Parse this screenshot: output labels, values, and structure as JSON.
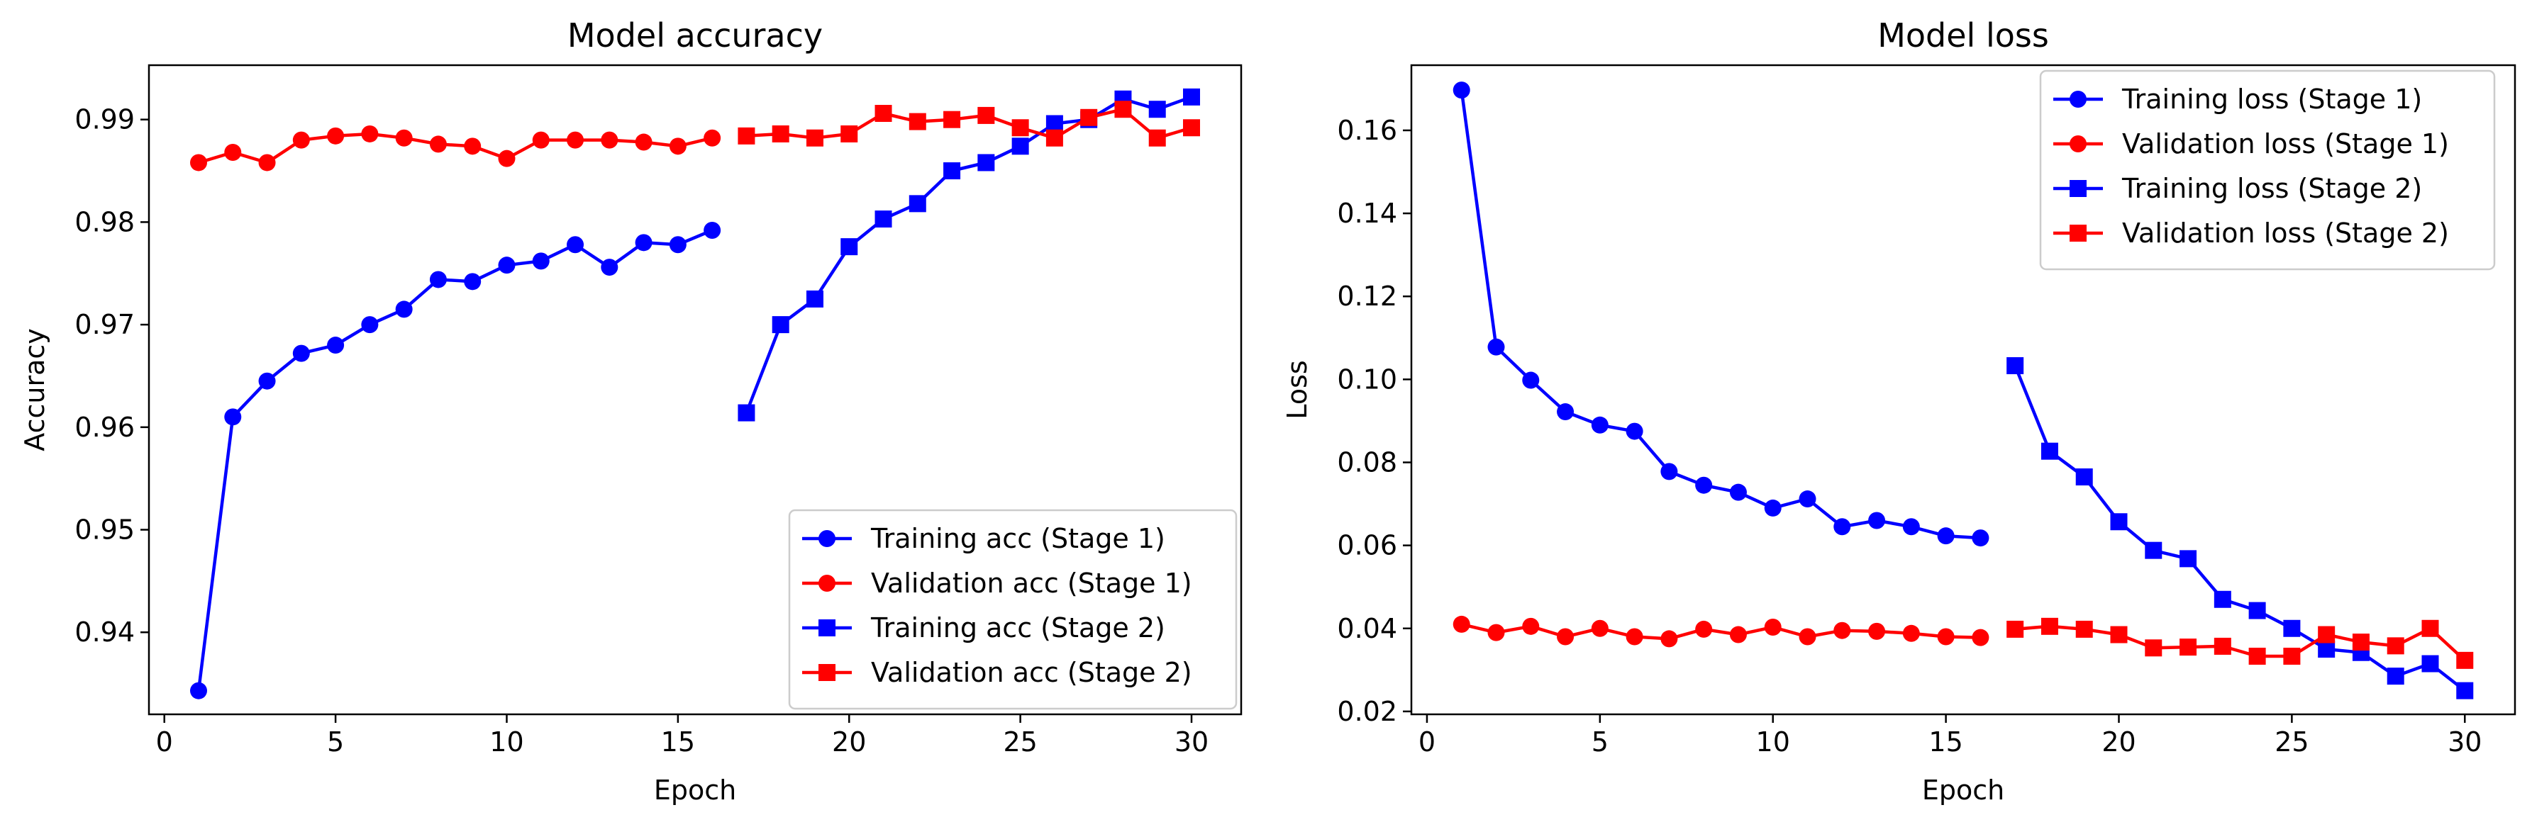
{
  "chart_data": [
    {
      "type": "line",
      "title": "Model accuracy",
      "xlabel": "Epoch",
      "ylabel": "Accuracy",
      "xlim": [
        -0.45,
        31.45
      ],
      "ylim": [
        0.932,
        0.9953
      ],
      "xticks": [
        0,
        5,
        10,
        15,
        20,
        25,
        30
      ],
      "yticks": [
        0.94,
        0.95,
        0.96,
        0.97,
        0.98,
        0.99
      ],
      "xtick_labels": [
        "0",
        "5",
        "10",
        "15",
        "20",
        "25",
        "30"
      ],
      "ytick_labels": [
        "0.94",
        "0.95",
        "0.96",
        "0.97",
        "0.98",
        "0.99"
      ],
      "legend_position": "lower-right",
      "grid": false,
      "series": [
        {
          "name": "Training acc (Stage 1)",
          "color": "#0000ff",
          "marker": "circle",
          "x": [
            1,
            2,
            3,
            4,
            5,
            6,
            7,
            8,
            9,
            10,
            11,
            12,
            13,
            14,
            15,
            16
          ],
          "y": [
            0.9343,
            0.961,
            0.9645,
            0.9672,
            0.968,
            0.97,
            0.9715,
            0.9744,
            0.9742,
            0.9758,
            0.9762,
            0.9778,
            0.9756,
            0.978,
            0.9778,
            0.9792
          ]
        },
        {
          "name": "Validation acc (Stage 1)",
          "color": "#ff0000",
          "marker": "circle",
          "x": [
            1,
            2,
            3,
            4,
            5,
            6,
            7,
            8,
            9,
            10,
            11,
            12,
            13,
            14,
            15,
            16
          ],
          "y": [
            0.9858,
            0.9868,
            0.9858,
            0.988,
            0.9884,
            0.9886,
            0.9882,
            0.9876,
            0.9874,
            0.9862,
            0.988,
            0.988,
            0.988,
            0.9878,
            0.9874,
            0.9882
          ]
        },
        {
          "name": "Training acc (Stage 2)",
          "color": "#0000ff",
          "marker": "square",
          "x": [
            17,
            18,
            19,
            20,
            21,
            22,
            23,
            24,
            25,
            26,
            27,
            28,
            29,
            30
          ],
          "y": [
            0.9614,
            0.97,
            0.9725,
            0.9776,
            0.9803,
            0.9818,
            0.985,
            0.9858,
            0.9874,
            0.9896,
            0.99,
            0.992,
            0.991,
            0.9922
          ]
        },
        {
          "name": "Validation acc (Stage 2)",
          "color": "#ff0000",
          "marker": "square",
          "x": [
            17,
            18,
            19,
            20,
            21,
            22,
            23,
            24,
            25,
            26,
            27,
            28,
            29,
            30
          ],
          "y": [
            0.9884,
            0.9886,
            0.9882,
            0.9886,
            0.9906,
            0.9898,
            0.99,
            0.9904,
            0.9892,
            0.9882,
            0.9902,
            0.991,
            0.9882,
            0.9892
          ]
        }
      ]
    },
    {
      "type": "line",
      "title": "Model loss",
      "xlabel": "Epoch",
      "ylabel": "Loss",
      "xlim": [
        -0.45,
        31.45
      ],
      "ylim": [
        0.0193,
        0.1757
      ],
      "xticks": [
        0,
        5,
        10,
        15,
        20,
        25,
        30
      ],
      "yticks": [
        0.02,
        0.04,
        0.06,
        0.08,
        0.1,
        0.12,
        0.14,
        0.16
      ],
      "xtick_labels": [
        "0",
        "5",
        "10",
        "15",
        "20",
        "25",
        "30"
      ],
      "ytick_labels": [
        "0.02",
        "0.04",
        "0.06",
        "0.08",
        "0.10",
        "0.12",
        "0.14",
        "0.16"
      ],
      "legend_position": "upper-right",
      "grid": false,
      "series": [
        {
          "name": "Training loss (Stage 1)",
          "color": "#0000ff",
          "marker": "circle",
          "x": [
            1,
            2,
            3,
            4,
            5,
            6,
            7,
            8,
            9,
            10,
            11,
            12,
            13,
            14,
            15,
            16
          ],
          "y": [
            0.1697,
            0.1078,
            0.0998,
            0.0922,
            0.089,
            0.0875,
            0.0778,
            0.0745,
            0.0728,
            0.069,
            0.0712,
            0.0645,
            0.066,
            0.0645,
            0.0623,
            0.0618
          ]
        },
        {
          "name": "Validation loss (Stage 1)",
          "color": "#ff0000",
          "marker": "circle",
          "x": [
            1,
            2,
            3,
            4,
            5,
            6,
            7,
            8,
            9,
            10,
            11,
            12,
            13,
            14,
            15,
            16
          ],
          "y": [
            0.041,
            0.039,
            0.0405,
            0.038,
            0.04,
            0.038,
            0.0375,
            0.0398,
            0.0385,
            0.0403,
            0.038,
            0.0395,
            0.0393,
            0.0388,
            0.038,
            0.0378
          ]
        },
        {
          "name": "Training loss (Stage 2)",
          "color": "#0000ff",
          "marker": "square",
          "x": [
            17,
            18,
            19,
            20,
            21,
            22,
            23,
            24,
            25,
            26,
            27,
            28,
            29,
            30
          ],
          "y": [
            0.1033,
            0.0827,
            0.0765,
            0.0657,
            0.0588,
            0.0568,
            0.047,
            0.0443,
            0.04,
            0.035,
            0.0342,
            0.0285,
            0.0315,
            0.025
          ]
        },
        {
          "name": "Validation loss (Stage 2)",
          "color": "#ff0000",
          "marker": "square",
          "x": [
            17,
            18,
            19,
            20,
            21,
            22,
            23,
            24,
            25,
            26,
            27,
            28,
            29,
            30
          ],
          "y": [
            0.0398,
            0.0405,
            0.0398,
            0.0385,
            0.0353,
            0.0355,
            0.0357,
            0.0333,
            0.0333,
            0.0385,
            0.0367,
            0.0358,
            0.04,
            0.0323
          ]
        }
      ]
    }
  ]
}
